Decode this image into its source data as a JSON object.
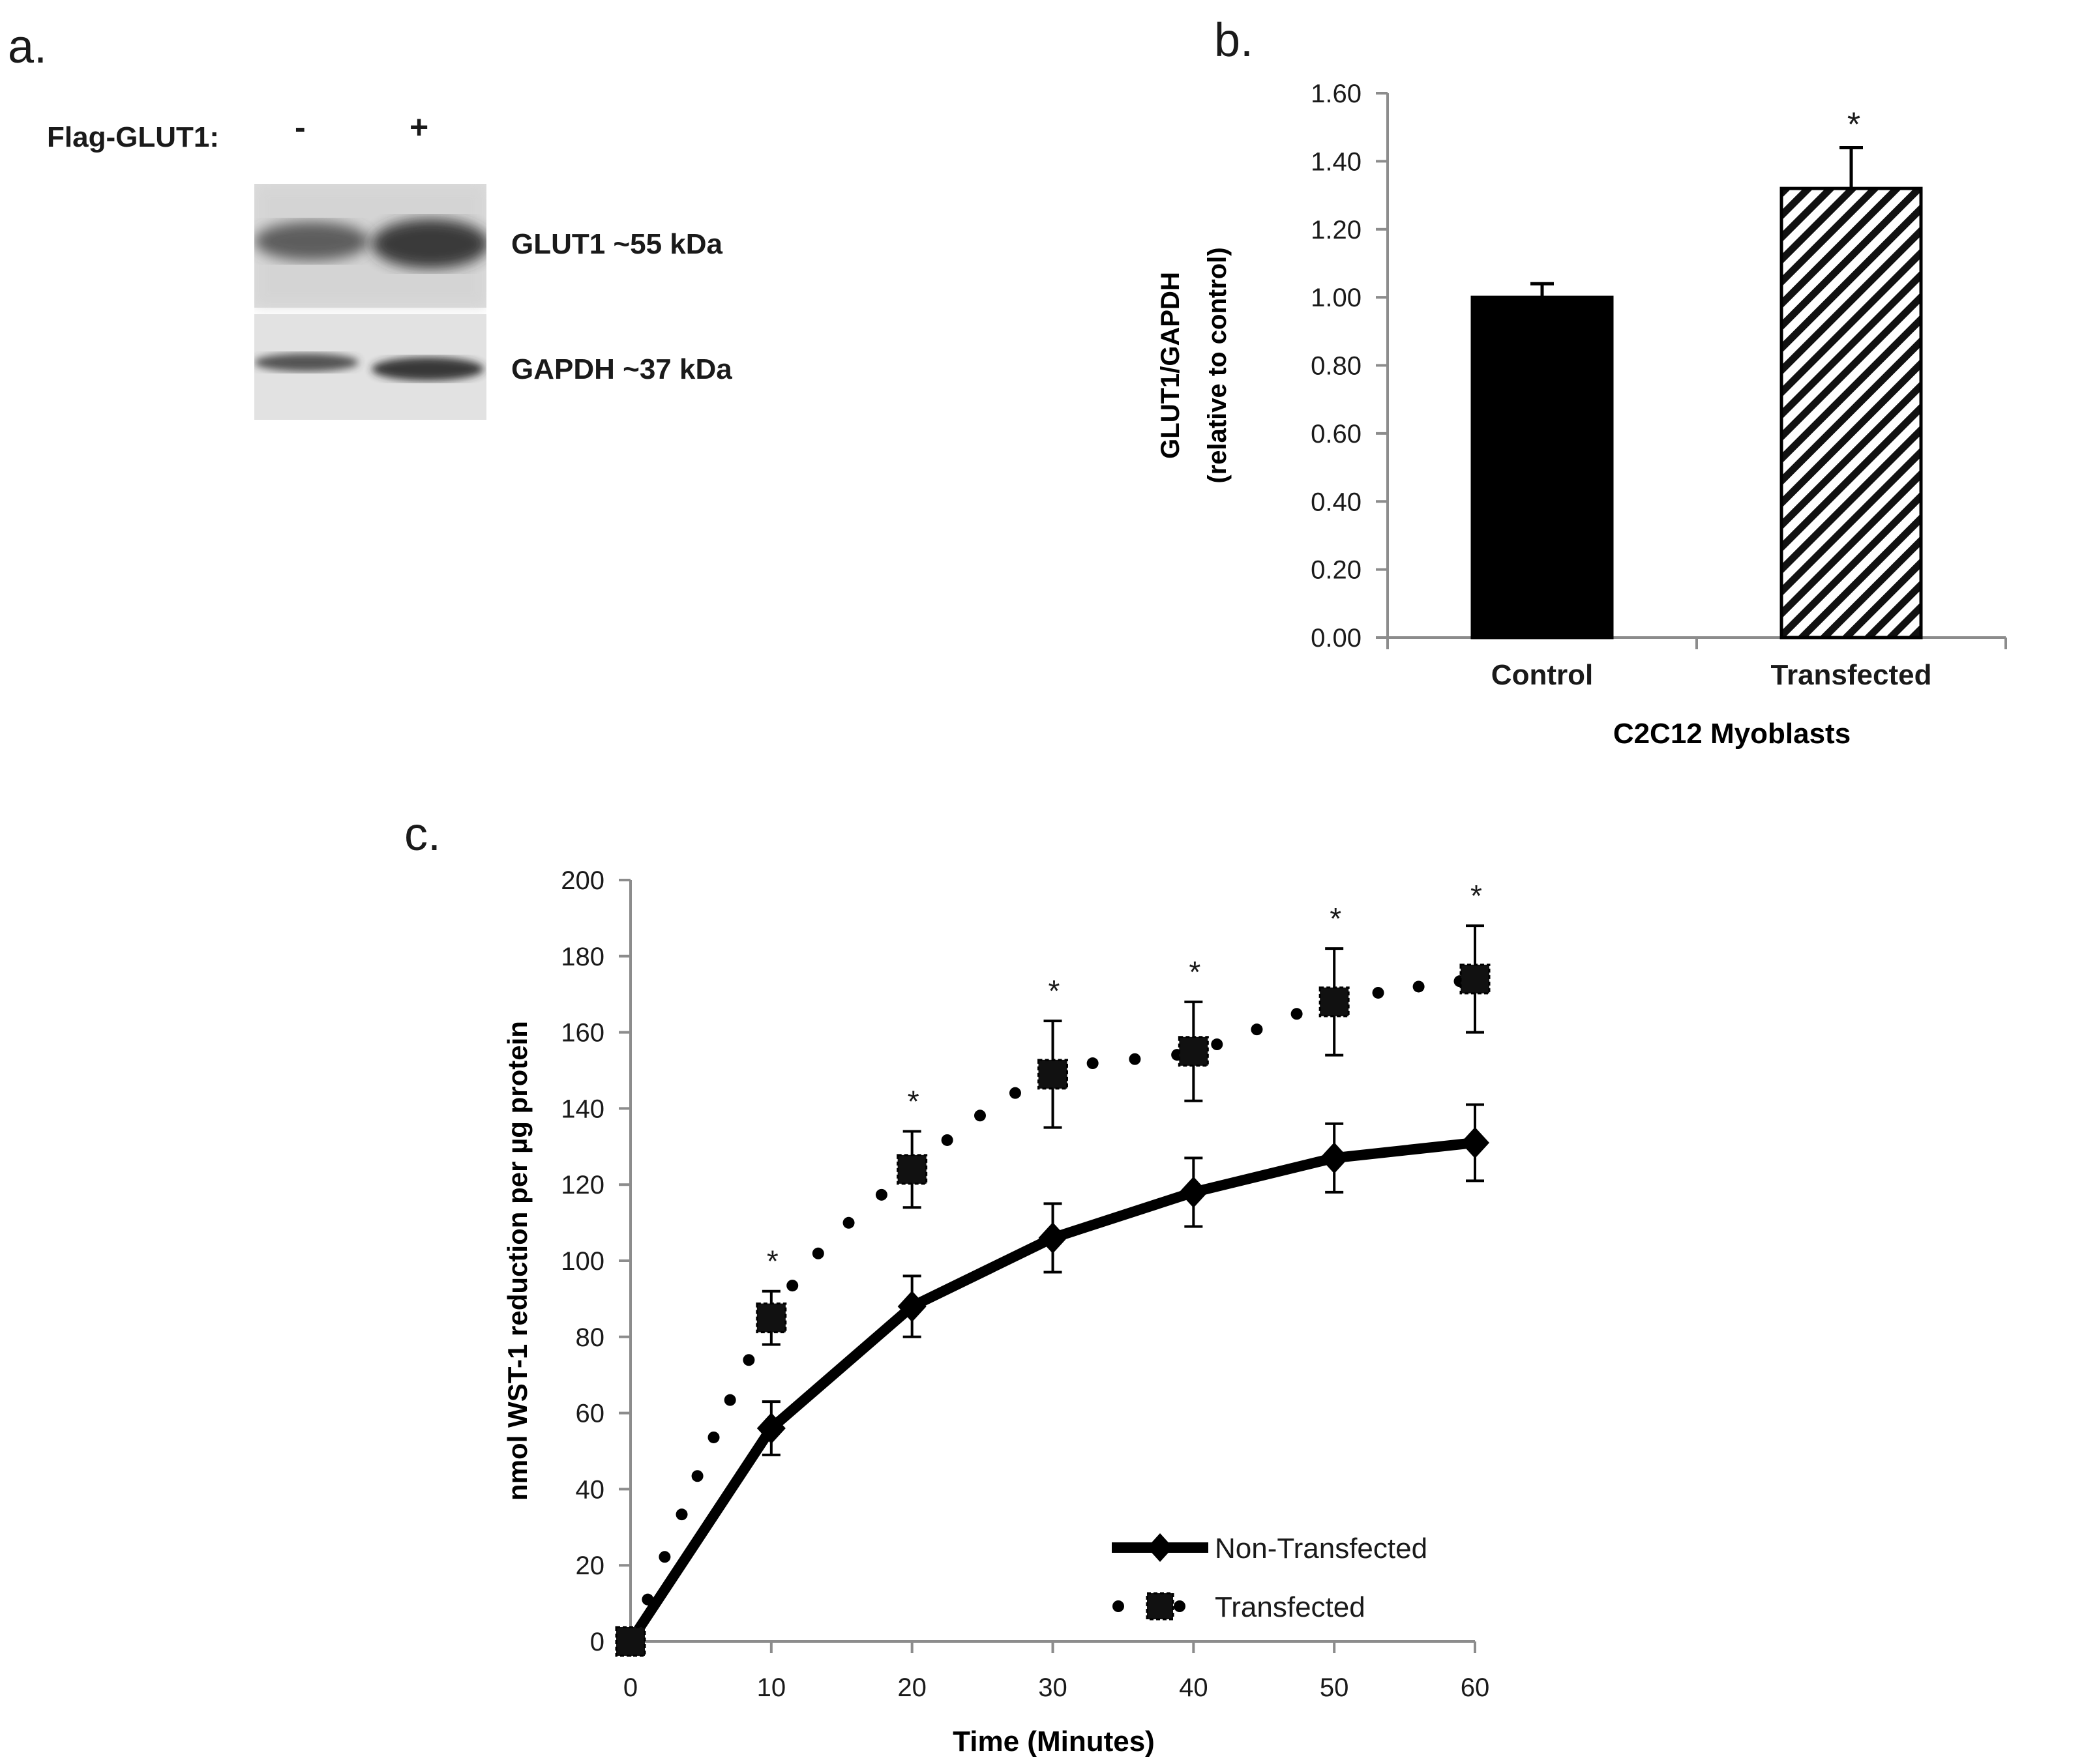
{
  "panel_a": {
    "label": "a.",
    "row_label": "Flag-GLUT1:",
    "lane_signs": [
      "-",
      "+"
    ],
    "bands": [
      {
        "name": "GLUT1",
        "label": "GLUT1 ~55 kDa"
      },
      {
        "name": "GAPDH",
        "label": "GAPDH ~37 kDa"
      }
    ]
  },
  "panel_b_label": "b.",
  "panel_c_label": "c.",
  "chart_data": [
    {
      "id": "b",
      "type": "bar",
      "categories": [
        "Control",
        "Transfected"
      ],
      "values": [
        1.0,
        1.32
      ],
      "errors": [
        0.04,
        0.12
      ],
      "significance": [
        "",
        "*"
      ],
      "fills": [
        "solid",
        "hatched"
      ],
      "xlabel": "C2C12 Myoblasts",
      "ylabel_line1": "GLUT1/GAPDH",
      "ylabel_line2": "(relative to control)",
      "ylim": [
        0,
        1.6
      ],
      "yticks": [
        "0.00",
        "0.20",
        "0.40",
        "0.60",
        "0.80",
        "1.00",
        "1.20",
        "1.40",
        "1.60"
      ]
    },
    {
      "id": "c",
      "type": "line",
      "x": [
        0,
        10,
        20,
        30,
        40,
        50,
        60
      ],
      "series": [
        {
          "name": "Non-Transfected",
          "style": "solid-diamond",
          "values": [
            0,
            56,
            88,
            106,
            118,
            127,
            131
          ],
          "errors": [
            0,
            7,
            8,
            9,
            9,
            9,
            10
          ]
        },
        {
          "name": "Transfected",
          "style": "dotted-square",
          "values": [
            0,
            85,
            124,
            149,
            155,
            168,
            174
          ],
          "errors": [
            0,
            7,
            10,
            14,
            13,
            14,
            14
          ]
        }
      ],
      "significance": [
        "",
        "*",
        "*",
        "*",
        "*",
        "*",
        "*"
      ],
      "xlabel": "Time (Minutes)",
      "ylabel": "nmol WST-1 reduction per µg protein",
      "xlim": [
        0,
        60
      ],
      "ylim": [
        0,
        200
      ],
      "xticks": [
        "0",
        "10",
        "20",
        "30",
        "40",
        "50",
        "60"
      ],
      "yticks": [
        "0",
        "20",
        "40",
        "60",
        "80",
        "100",
        "120",
        "140",
        "160",
        "180",
        "200"
      ]
    }
  ]
}
